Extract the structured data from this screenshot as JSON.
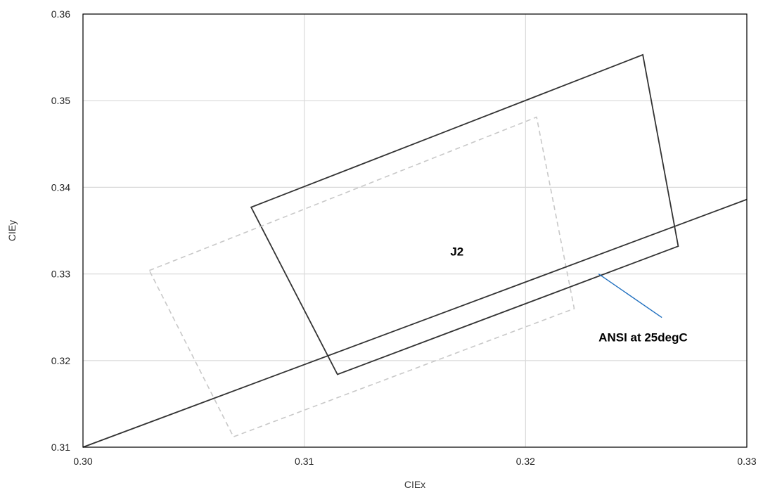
{
  "chart_data": {
    "type": "line",
    "title": "",
    "xlabel": "CIEx",
    "ylabel": "CIEy",
    "xlim": [
      0.3,
      0.33
    ],
    "ylim": [
      0.31,
      0.36
    ],
    "xticks": [
      "0.30",
      "0.31",
      "0.32",
      "0.33"
    ],
    "yticks": [
      "0.31",
      "0.32",
      "0.33",
      "0.34",
      "0.35",
      "0.36"
    ],
    "grid": true,
    "legend": "none",
    "series": [
      {
        "style": "solid",
        "color": "#333333",
        "closed": true,
        "points": [
          [
            0.3076,
            0.3377
          ],
          [
            0.3253,
            0.3553
          ],
          [
            0.3269,
            0.3332
          ],
          [
            0.3115,
            0.3184
          ]
        ]
      },
      {
        "style": "dashed",
        "color": "#c8c8c8",
        "closed": true,
        "points": [
          [
            0.303,
            0.3304
          ],
          [
            0.3205,
            0.3481
          ],
          [
            0.3222,
            0.326
          ],
          [
            0.3068,
            0.3112
          ]
        ]
      },
      {
        "style": "solid",
        "color": "#333333",
        "closed": false,
        "points": [
          [
            0.3,
            0.31
          ],
          [
            0.33,
            0.3386
          ]
        ]
      }
    ],
    "annotations": [
      {
        "text": "J2",
        "x": 0.3166,
        "y": 0.3326
      },
      {
        "text": "ANSI at 25degC",
        "x": 0.3233,
        "y": 0.3227,
        "arrow_to": [
          0.3233,
          0.33
        ],
        "arrow_color": "#1f6fbf"
      }
    ]
  }
}
